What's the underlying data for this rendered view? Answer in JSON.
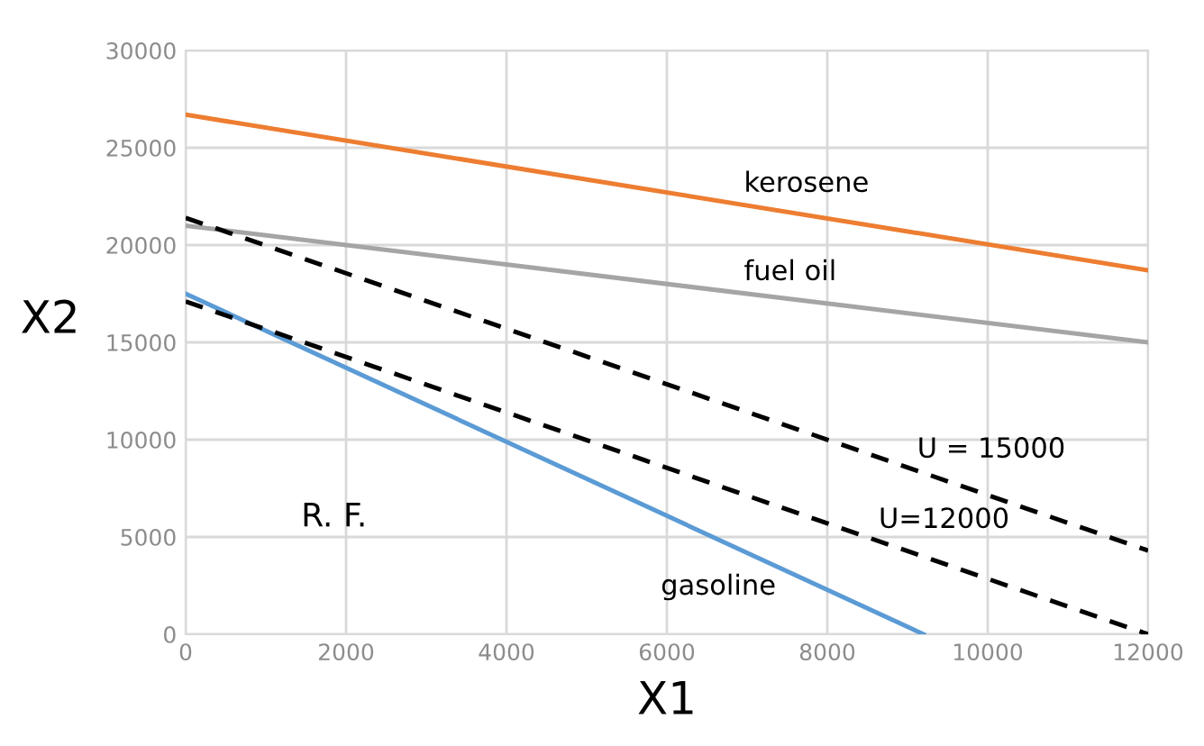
{
  "chart_data": {
    "type": "line",
    "xlabel": "X1",
    "ylabel": "X2",
    "xlim": [
      0,
      12000
    ],
    "ylim": [
      0,
      30000
    ],
    "xticks": [
      0,
      2000,
      4000,
      6000,
      8000,
      10000,
      12000
    ],
    "yticks": [
      0,
      5000,
      10000,
      15000,
      20000,
      25000,
      30000
    ],
    "grid": true,
    "marker": "none",
    "series": [
      {
        "name": "kerosene",
        "color": "#ed7d31",
        "x": [
          0,
          12000
        ],
        "values": [
          26700,
          18700
        ],
        "line_style": "solid"
      },
      {
        "name": "fuel oil",
        "color": "#a5a5a5",
        "x": [
          0,
          12000
        ],
        "values": [
          21000,
          15000
        ],
        "line_style": "solid"
      },
      {
        "name": "gasoline",
        "color": "#5b9bd5",
        "x": [
          0,
          9200
        ],
        "values": [
          17500,
          0
        ],
        "line_style": "solid"
      },
      {
        "name": "U = 15000",
        "color": "#000000",
        "x": [
          0,
          12000
        ],
        "values": [
          21400,
          4300
        ],
        "line_style": "dashed"
      },
      {
        "name": "U=12000",
        "color": "#000000",
        "x": [
          0,
          12000
        ],
        "values": [
          17100,
          0
        ],
        "line_style": "dashed"
      }
    ],
    "annotations": [
      "R. F."
    ]
  }
}
